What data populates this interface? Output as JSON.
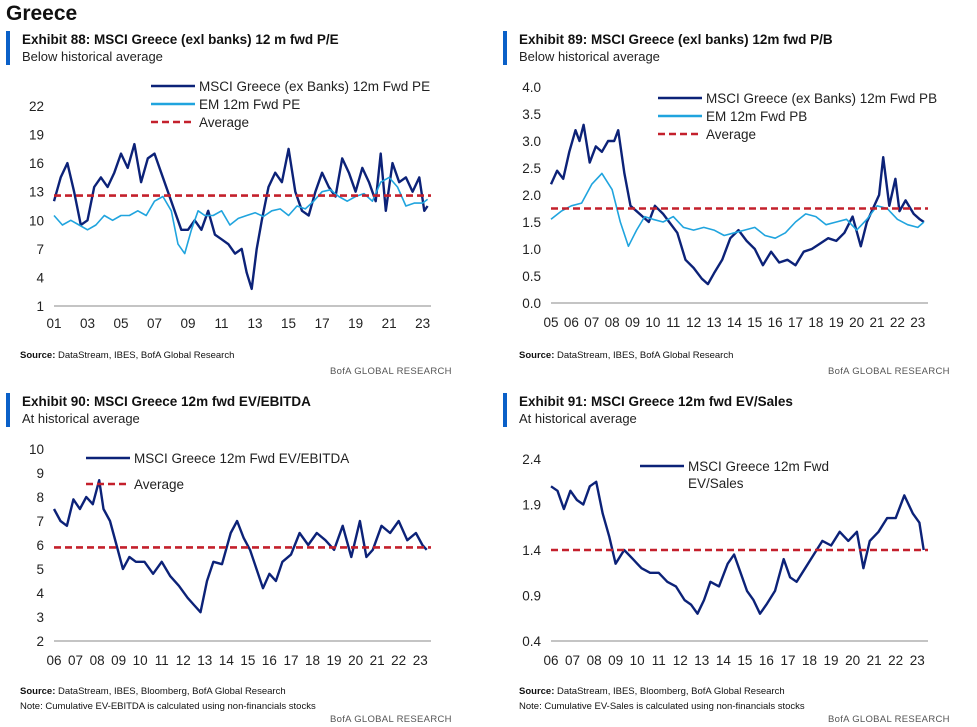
{
  "page": {
    "title": "Greece",
    "colors": {
      "dark_navy": "#0c2278",
      "light_blue": "#20a4de",
      "average_red": "#c4202c",
      "accent": "#0a60c8"
    }
  },
  "panels": [
    {
      "exhibit": "Exhibit 88: MSCI Greece (exl banks) 12  m fwd P/E",
      "subtitle": "Below historical average",
      "source_label": "Source:",
      "source_text": " DataStream, IBES, BofA Global Research",
      "note": "",
      "footer": "BofA GLOBAL RESEARCH"
    },
    {
      "exhibit": "Exhibit 89: MSCI Greece (exl banks) 12m fwd P/B",
      "subtitle": "Below historical average",
      "source_label": "Source:",
      "source_text": " DataStream, IBES, BofA Global Research",
      "note": "",
      "footer": "BofA GLOBAL RESEARCH"
    },
    {
      "exhibit": "Exhibit 90: MSCI Greece 12m fwd EV/EBITDA",
      "subtitle": "At historical average",
      "source_label": "Source:",
      "source_text": " DataStream, IBES, Bloomberg, BofA Global Research",
      "note": "Note: Cumulative EV-EBITDA  is calculated using  non-financials   stocks",
      "footer": "BofA GLOBAL RESEARCH"
    },
    {
      "exhibit": "Exhibit 91: MSCI Greece 12m fwd EV/Sales",
      "subtitle": "At historical average",
      "source_label": "Source:",
      "source_text": " DataStream, IBES, Bloomberg, BofA Global Research",
      "note": "Note: Cumulative EV-Sales  is calculated using  non-financials   stocks",
      "footer": "BofA GLOBAL RESEARCH"
    }
  ],
  "chart_data": [
    {
      "type": "line",
      "yticks": [
        "1",
        "4",
        "7",
        "10",
        "13",
        "16",
        "19",
        "22"
      ],
      "ylim": [
        1,
        22
      ],
      "xticks": [
        "01",
        "03",
        "05",
        "07",
        "09",
        "11",
        "13",
        "15",
        "17",
        "19",
        "21",
        "23"
      ],
      "xlim": [
        2001,
        2023.5
      ],
      "average": 12.6,
      "series": [
        {
          "name": "MSCI Greece (ex Banks) 12m Fwd PE",
          "color": "#0c2278",
          "width": 2.4,
          "x": [
            2001.0,
            2001.4,
            2001.8,
            2002.2,
            2002.6,
            2003.0,
            2003.4,
            2003.8,
            2004.2,
            2004.6,
            2005.0,
            2005.4,
            2005.8,
            2006.2,
            2006.6,
            2007.0,
            2007.4,
            2007.8,
            2008.2,
            2008.6,
            2009.0,
            2009.4,
            2009.8,
            2010.2,
            2010.6,
            2011.0,
            2011.4,
            2011.8,
            2012.2,
            2012.5,
            2012.8,
            2013.1,
            2013.4,
            2013.8,
            2014.2,
            2014.6,
            2015.0,
            2015.4,
            2015.8,
            2016.2,
            2016.6,
            2017.0,
            2017.4,
            2017.8,
            2018.2,
            2018.6,
            2019.0,
            2019.4,
            2019.8,
            2020.2,
            2020.5,
            2020.8,
            2021.2,
            2021.6,
            2022.0,
            2022.4,
            2022.8,
            2023.1,
            2023.3
          ],
          "y": [
            12,
            14.5,
            16,
            13,
            9.5,
            10,
            13.5,
            14.5,
            13.5,
            15,
            17,
            15.5,
            18,
            14,
            16.5,
            17,
            15,
            13,
            11,
            9,
            9,
            10,
            9,
            11,
            8.5,
            8,
            7.5,
            6.5,
            7,
            4.5,
            2.8,
            7,
            10,
            13.5,
            15,
            14,
            17.5,
            13,
            11,
            10.5,
            13,
            15,
            13.5,
            12.5,
            16.5,
            15,
            13,
            15.5,
            14,
            12,
            17,
            11,
            16,
            14,
            14.5,
            13,
            14.5,
            11,
            11.5
          ]
        },
        {
          "name": "EM 12m Fwd PE",
          "color": "#20a4de",
          "width": 1.6,
          "x": [
            2001.0,
            2001.5,
            2002.0,
            2002.5,
            2003.0,
            2003.5,
            2004.0,
            2004.5,
            2005.0,
            2005.5,
            2006.0,
            2006.5,
            2007.0,
            2007.5,
            2008.0,
            2008.4,
            2008.8,
            2009.2,
            2009.6,
            2010.0,
            2010.5,
            2011.0,
            2011.5,
            2012.0,
            2012.5,
            2013.0,
            2013.5,
            2014.0,
            2014.5,
            2015.0,
            2015.5,
            2016.0,
            2016.5,
            2017.0,
            2017.5,
            2018.0,
            2018.5,
            2019.0,
            2019.5,
            2020.0,
            2020.5,
            2021.0,
            2021.5,
            2022.0,
            2022.5,
            2023.0,
            2023.3
          ],
          "y": [
            10.5,
            9.5,
            10,
            9.5,
            9,
            9.5,
            10.5,
            10,
            10.5,
            10.5,
            11,
            10.5,
            12,
            12.5,
            11,
            7.5,
            6.5,
            9,
            11,
            10.5,
            10.5,
            11,
            9.5,
            10.2,
            10.5,
            10.8,
            10.4,
            11,
            11.2,
            10.5,
            11.5,
            11.2,
            12,
            13,
            13.2,
            12.5,
            12,
            12.5,
            12.8,
            12,
            14,
            14.5,
            13.5,
            11.5,
            11.8,
            11.8,
            12.2
          ]
        }
      ],
      "legend": [
        "MSCI Greece (ex Banks) 12m Fwd PE",
        "EM 12m Fwd PE",
        "Average"
      ]
    },
    {
      "type": "line",
      "yticks": [
        "0.0",
        "0.5",
        "1.0",
        "1.5",
        "2.0",
        "2.5",
        "3.0",
        "3.5",
        "4.0"
      ],
      "ylim": [
        0,
        4
      ],
      "xticks": [
        "05",
        "06",
        "07",
        "08",
        "09",
        "10",
        "11",
        "12",
        "13",
        "14",
        "15",
        "16",
        "17",
        "18",
        "19",
        "20",
        "21",
        "22",
        "23"
      ],
      "xlim": [
        2005,
        2023.5
      ],
      "average": 1.75,
      "series": [
        {
          "name": "MSCI Greece (ex Banks) 12m Fwd PB",
          "color": "#0c2278",
          "width": 2.4,
          "x": [
            2005.0,
            2005.3,
            2005.6,
            2005.9,
            2006.2,
            2006.4,
            2006.6,
            2006.9,
            2007.2,
            2007.5,
            2007.8,
            2008.1,
            2008.3,
            2008.6,
            2008.9,
            2009.2,
            2009.5,
            2009.8,
            2010.1,
            2010.5,
            2010.8,
            2011.2,
            2011.6,
            2012.0,
            2012.4,
            2012.7,
            2013.0,
            2013.4,
            2013.8,
            2014.2,
            2014.6,
            2015.0,
            2015.4,
            2015.8,
            2016.2,
            2016.6,
            2017.0,
            2017.4,
            2017.8,
            2018.2,
            2018.6,
            2019.0,
            2019.4,
            2019.8,
            2020.2,
            2020.5,
            2020.8,
            2021.1,
            2021.3,
            2021.6,
            2021.9,
            2022.1,
            2022.4,
            2022.8,
            2023.1,
            2023.3
          ],
          "y": [
            2.2,
            2.45,
            2.3,
            2.8,
            3.2,
            3.0,
            3.3,
            2.6,
            2.9,
            2.8,
            3.0,
            3.0,
            3.2,
            2.4,
            1.8,
            1.7,
            1.6,
            1.5,
            1.8,
            1.65,
            1.5,
            1.3,
            0.8,
            0.65,
            0.45,
            0.35,
            0.55,
            0.8,
            1.2,
            1.35,
            1.15,
            1.0,
            0.7,
            0.95,
            0.75,
            0.8,
            0.7,
            0.95,
            1.0,
            1.1,
            1.2,
            1.15,
            1.3,
            1.6,
            1.05,
            1.5,
            1.75,
            2.0,
            2.7,
            1.8,
            2.3,
            1.7,
            1.9,
            1.65,
            1.55,
            1.5
          ]
        },
        {
          "name": "EM 12m Fwd PB",
          "color": "#20a4de",
          "width": 1.6,
          "x": [
            2005.0,
            2005.5,
            2006.0,
            2006.5,
            2007.0,
            2007.5,
            2008.0,
            2008.4,
            2008.8,
            2009.2,
            2009.6,
            2010.0,
            2010.5,
            2011.0,
            2011.5,
            2012.0,
            2012.5,
            2013.0,
            2013.5,
            2014.0,
            2014.5,
            2015.0,
            2015.5,
            2016.0,
            2016.5,
            2017.0,
            2017.5,
            2018.0,
            2018.5,
            2019.0,
            2019.5,
            2020.0,
            2020.5,
            2021.0,
            2021.5,
            2022.0,
            2022.5,
            2023.0,
            2023.3
          ],
          "y": [
            1.55,
            1.7,
            1.8,
            1.85,
            2.2,
            2.4,
            2.1,
            1.5,
            1.05,
            1.35,
            1.6,
            1.55,
            1.5,
            1.6,
            1.4,
            1.35,
            1.4,
            1.35,
            1.25,
            1.3,
            1.35,
            1.4,
            1.25,
            1.2,
            1.3,
            1.5,
            1.65,
            1.6,
            1.45,
            1.5,
            1.55,
            1.35,
            1.55,
            1.8,
            1.75,
            1.55,
            1.45,
            1.4,
            1.5
          ]
        }
      ],
      "legend": [
        "MSCI Greece (ex Banks) 12m Fwd PB",
        "EM 12m Fwd PB",
        "Average"
      ]
    },
    {
      "type": "line",
      "yticks": [
        "2",
        "3",
        "4",
        "5",
        "6",
        "7",
        "8",
        "9",
        "10"
      ],
      "ylim": [
        2,
        10
      ],
      "xticks": [
        "06",
        "07",
        "08",
        "09",
        "10",
        "11",
        "12",
        "13",
        "14",
        "15",
        "16",
        "17",
        "18",
        "19",
        "20",
        "21",
        "22",
        "23"
      ],
      "xlim": [
        2006,
        2023.5
      ],
      "average": 5.9,
      "series": [
        {
          "name": "MSCI Greece 12m Fwd EV/EBITDA",
          "color": "#0c2278",
          "width": 2.4,
          "x": [
            2006.0,
            2006.3,
            2006.6,
            2006.9,
            2007.2,
            2007.5,
            2007.8,
            2008.1,
            2008.3,
            2008.6,
            2008.9,
            2009.2,
            2009.5,
            2009.8,
            2010.2,
            2010.6,
            2011.0,
            2011.4,
            2011.8,
            2012.2,
            2012.5,
            2012.8,
            2013.1,
            2013.4,
            2013.8,
            2014.2,
            2014.5,
            2014.8,
            2015.1,
            2015.4,
            2015.7,
            2016.0,
            2016.3,
            2016.6,
            2017.0,
            2017.4,
            2017.8,
            2018.2,
            2018.6,
            2019.0,
            2019.4,
            2019.8,
            2020.2,
            2020.5,
            2020.8,
            2021.2,
            2021.6,
            2022.0,
            2022.4,
            2022.8,
            2023.1,
            2023.3
          ],
          "y": [
            7.5,
            7.0,
            6.8,
            7.9,
            7.5,
            8.0,
            7.7,
            8.7,
            7.5,
            7.0,
            6.0,
            5.0,
            5.5,
            5.3,
            5.3,
            4.8,
            5.3,
            4.7,
            4.3,
            3.8,
            3.5,
            3.2,
            4.5,
            5.3,
            5.2,
            6.5,
            7.0,
            6.3,
            5.8,
            5.0,
            4.2,
            4.8,
            4.5,
            5.3,
            5.6,
            6.5,
            6.0,
            6.5,
            6.2,
            5.8,
            6.8,
            5.5,
            7.0,
            5.5,
            5.8,
            6.8,
            6.5,
            7.0,
            6.2,
            6.5,
            6.0,
            5.8
          ]
        }
      ],
      "legend": [
        "MSCI Greece 12m Fwd EV/EBITDA",
        "Average"
      ]
    },
    {
      "type": "line",
      "yticks": [
        "0.4",
        "0.9",
        "1.4",
        "1.9",
        "2.4"
      ],
      "ylim": [
        0.4,
        2.4
      ],
      "xticks": [
        "06",
        "07",
        "08",
        "09",
        "10",
        "11",
        "12",
        "13",
        "14",
        "15",
        "16",
        "17",
        "18",
        "19",
        "20",
        "21",
        "22",
        "23"
      ],
      "xlim": [
        2006,
        2023.5
      ],
      "average": 1.4,
      "series": [
        {
          "name": "MSCI Greece 12m Fwd EV/Sales",
          "color": "#0c2278",
          "width": 2.4,
          "x": [
            2006.0,
            2006.3,
            2006.6,
            2006.9,
            2007.2,
            2007.5,
            2007.8,
            2008.1,
            2008.4,
            2008.7,
            2009.0,
            2009.4,
            2009.8,
            2010.2,
            2010.6,
            2011.0,
            2011.4,
            2011.8,
            2012.2,
            2012.5,
            2012.8,
            2013.1,
            2013.4,
            2013.8,
            2014.2,
            2014.5,
            2014.8,
            2015.1,
            2015.4,
            2015.7,
            2016.0,
            2016.4,
            2016.8,
            2017.1,
            2017.4,
            2017.8,
            2018.2,
            2018.6,
            2019.0,
            2019.4,
            2019.8,
            2020.2,
            2020.5,
            2020.8,
            2021.2,
            2021.6,
            2022.0,
            2022.4,
            2022.8,
            2023.1,
            2023.3
          ],
          "y": [
            2.1,
            2.05,
            1.85,
            2.05,
            1.95,
            1.9,
            2.1,
            2.15,
            1.8,
            1.55,
            1.25,
            1.4,
            1.3,
            1.2,
            1.15,
            1.15,
            1.05,
            1.0,
            0.85,
            0.8,
            0.7,
            0.85,
            1.05,
            1.0,
            1.25,
            1.35,
            1.15,
            0.95,
            0.85,
            0.7,
            0.8,
            0.95,
            1.3,
            1.1,
            1.05,
            1.2,
            1.35,
            1.5,
            1.45,
            1.6,
            1.5,
            1.6,
            1.2,
            1.5,
            1.6,
            1.75,
            1.75,
            2.0,
            1.8,
            1.7,
            1.4
          ]
        }
      ],
      "legend": [
        "MSCI Greece 12m Fwd",
        "EV/Sales",
        "Average"
      ]
    }
  ]
}
